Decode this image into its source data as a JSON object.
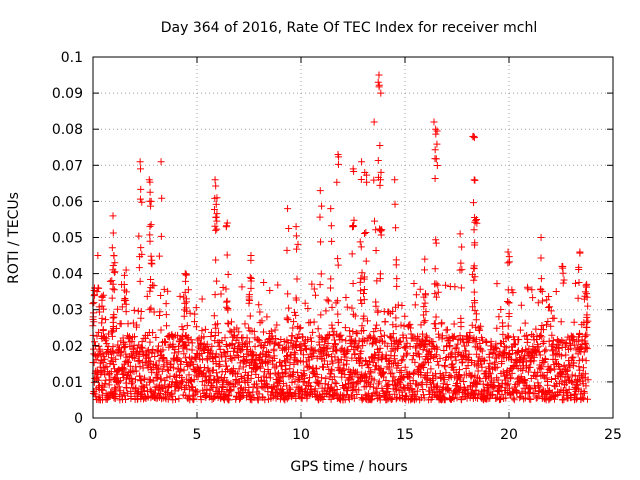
{
  "chart_data": {
    "type": "scatter",
    "title": "Day 364 of 2016, Rate Of TEC Index for receiver mchl",
    "xlabel": "GPS time / hours",
    "ylabel": "ROTI / TECUs",
    "xlim": [
      0,
      25
    ],
    "ylim": [
      0,
      0.1
    ],
    "x_ticks": [
      0,
      5,
      10,
      15,
      20,
      25
    ],
    "x_tick_labels": [
      "0",
      "5",
      "10",
      "15",
      "20",
      "25"
    ],
    "y_ticks": [
      0,
      0.01,
      0.02,
      0.03,
      0.04,
      0.05,
      0.06,
      0.07,
      0.08,
      0.09,
      0.1
    ],
    "y_tick_labels": [
      "0",
      "0.01",
      "0.02",
      "0.03",
      "0.04",
      "0.05",
      "0.06",
      "0.07",
      "0.08",
      "0.09",
      "0.1"
    ],
    "grid": true,
    "marker": "+",
    "colors": {
      "series": "#ff0000",
      "grid": "#a0a0a0",
      "axis": "#000000"
    },
    "series": [
      {
        "name": "ROTI",
        "x_range": [
          0,
          23.8
        ],
        "baseline_band": [
          0.005,
          0.02
        ],
        "peaks": [
          {
            "x": 0.05,
            "y": 0.036
          },
          {
            "x": 0.25,
            "y": 0.045
          },
          {
            "x": 0.45,
            "y": 0.034
          },
          {
            "x": 0.95,
            "y": 0.056
          },
          {
            "x": 1.0,
            "y": 0.045
          },
          {
            "x": 1.55,
            "y": 0.041
          },
          {
            "x": 2.25,
            "y": 0.071
          },
          {
            "x": 2.3,
            "y": 0.069
          },
          {
            "x": 2.75,
            "y": 0.066
          },
          {
            "x": 2.8,
            "y": 0.06
          },
          {
            "x": 3.25,
            "y": 0.071
          },
          {
            "x": 4.45,
            "y": 0.04
          },
          {
            "x": 5.85,
            "y": 0.066
          },
          {
            "x": 5.9,
            "y": 0.061
          },
          {
            "x": 6.45,
            "y": 0.054
          },
          {
            "x": 7.55,
            "y": 0.045
          },
          {
            "x": 9.35,
            "y": 0.058
          },
          {
            "x": 9.8,
            "y": 0.053
          },
          {
            "x": 10.95,
            "y": 0.063
          },
          {
            "x": 11.45,
            "y": 0.058
          },
          {
            "x": 11.75,
            "y": 0.073
          },
          {
            "x": 12.5,
            "y": 0.069
          },
          {
            "x": 12.9,
            "y": 0.071
          },
          {
            "x": 13.1,
            "y": 0.068
          },
          {
            "x": 13.55,
            "y": 0.082
          },
          {
            "x": 13.75,
            "y": 0.093
          },
          {
            "x": 13.8,
            "y": 0.095
          },
          {
            "x": 13.85,
            "y": 0.09
          },
          {
            "x": 14.55,
            "y": 0.066
          },
          {
            "x": 15.95,
            "y": 0.044
          },
          {
            "x": 16.45,
            "y": 0.082
          },
          {
            "x": 16.5,
            "y": 0.08
          },
          {
            "x": 17.7,
            "y": 0.051
          },
          {
            "x": 18.3,
            "y": 0.078
          },
          {
            "x": 18.35,
            "y": 0.066
          },
          {
            "x": 18.4,
            "y": 0.055
          },
          {
            "x": 20.0,
            "y": 0.046
          },
          {
            "x": 21.55,
            "y": 0.05
          },
          {
            "x": 22.6,
            "y": 0.042
          },
          {
            "x": 23.35,
            "y": 0.046
          },
          {
            "x": 23.7,
            "y": 0.037
          }
        ]
      }
    ]
  }
}
